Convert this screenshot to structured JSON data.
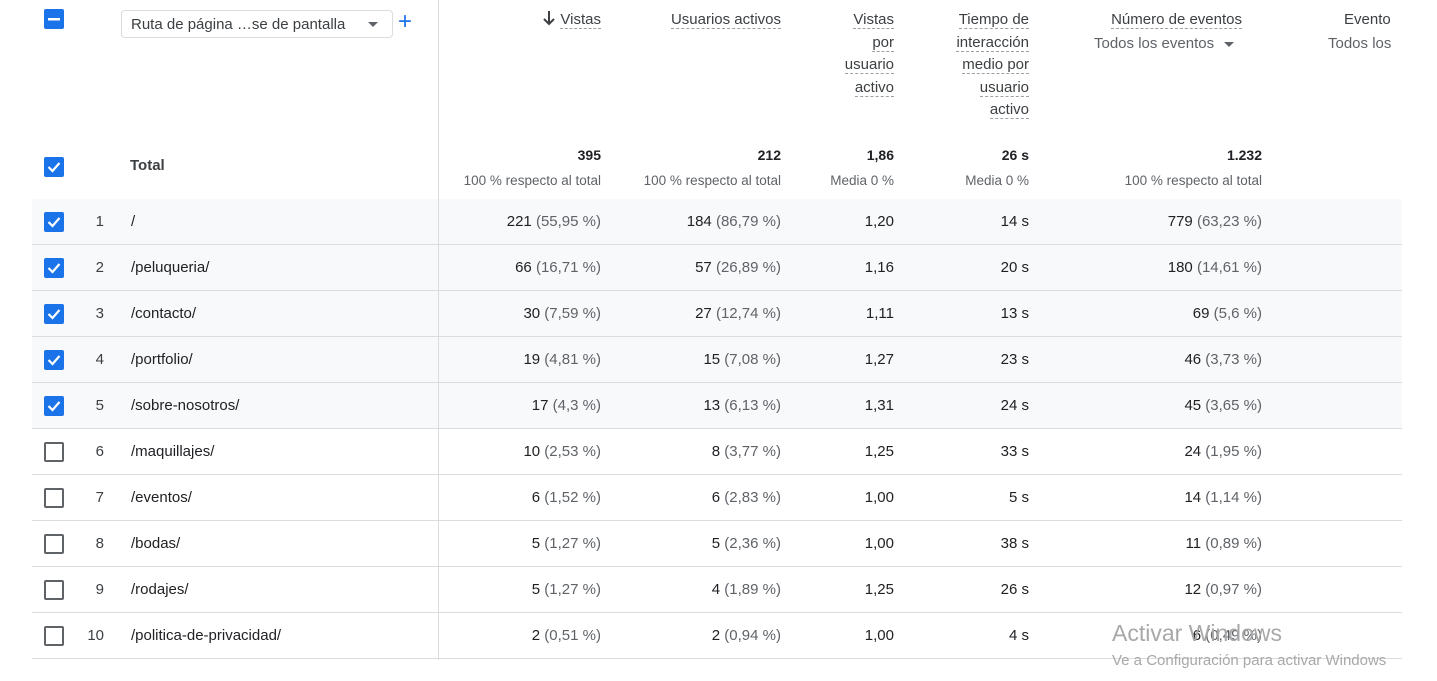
{
  "header": {
    "dimension_select": "Ruta de página …se de pantalla",
    "add_button": "+",
    "columns": {
      "views": "Vistas",
      "active_users": "Usuarios activos",
      "views_per_user": [
        "Vistas",
        "por",
        "usuario",
        "activo"
      ],
      "engagement_time": [
        "Tiempo de",
        "interacción",
        "medio por",
        "usuario",
        "activo"
      ],
      "event_count": "Número de eventos",
      "event_count_filter": "Todos los eventos",
      "events_partial": "Evento",
      "events_partial_filter": "Todos los"
    }
  },
  "total": {
    "label": "Total",
    "views": "395",
    "views_sub": "100 % respecto al total",
    "active_users": "212",
    "active_users_sub": "100 % respecto al total",
    "views_per_user": "1,86",
    "views_per_user_sub": "Media 0 %",
    "engagement_time": "26 s",
    "engagement_time_sub": "Media 0 %",
    "event_count": "1.232",
    "event_count_sub": "100 % respecto al total"
  },
  "rows": [
    {
      "idx": "1",
      "path": "/",
      "selected": true,
      "views": "221",
      "views_pct": "(55,95 %)",
      "users": "184",
      "users_pct": "(86,79 %)",
      "vpu": "1,20",
      "time": "14 s",
      "events": "779",
      "events_pct": "(63,23 %)"
    },
    {
      "idx": "2",
      "path": "/peluqueria/",
      "selected": true,
      "views": "66",
      "views_pct": "(16,71 %)",
      "users": "57",
      "users_pct": "(26,89 %)",
      "vpu": "1,16",
      "time": "20 s",
      "events": "180",
      "events_pct": "(14,61 %)"
    },
    {
      "idx": "3",
      "path": "/contacto/",
      "selected": true,
      "views": "30",
      "views_pct": "(7,59 %)",
      "users": "27",
      "users_pct": "(12,74 %)",
      "vpu": "1,11",
      "time": "13 s",
      "events": "69",
      "events_pct": "(5,6 %)"
    },
    {
      "idx": "4",
      "path": "/portfolio/",
      "selected": true,
      "views": "19",
      "views_pct": "(4,81 %)",
      "users": "15",
      "users_pct": "(7,08 %)",
      "vpu": "1,27",
      "time": "23 s",
      "events": "46",
      "events_pct": "(3,73 %)"
    },
    {
      "idx": "5",
      "path": "/sobre-nosotros/",
      "selected": true,
      "views": "17",
      "views_pct": "(4,3 %)",
      "users": "13",
      "users_pct": "(6,13 %)",
      "vpu": "1,31",
      "time": "24 s",
      "events": "45",
      "events_pct": "(3,65 %)"
    },
    {
      "idx": "6",
      "path": "/maquillajes/",
      "selected": false,
      "views": "10",
      "views_pct": "(2,53 %)",
      "users": "8",
      "users_pct": "(3,77 %)",
      "vpu": "1,25",
      "time": "33 s",
      "events": "24",
      "events_pct": "(1,95 %)"
    },
    {
      "idx": "7",
      "path": "/eventos/",
      "selected": false,
      "views": "6",
      "views_pct": "(1,52 %)",
      "users": "6",
      "users_pct": "(2,83 %)",
      "vpu": "1,00",
      "time": "5 s",
      "events": "14",
      "events_pct": "(1,14 %)"
    },
    {
      "idx": "8",
      "path": "/bodas/",
      "selected": false,
      "views": "5",
      "views_pct": "(1,27 %)",
      "users": "5",
      "users_pct": "(2,36 %)",
      "vpu": "1,00",
      "time": "38 s",
      "events": "11",
      "events_pct": "(0,89 %)"
    },
    {
      "idx": "9",
      "path": "/rodajes/",
      "selected": false,
      "views": "5",
      "views_pct": "(1,27 %)",
      "users": "4",
      "users_pct": "(1,89 %)",
      "vpu": "1,25",
      "time": "26 s",
      "events": "12",
      "events_pct": "(0,97 %)"
    },
    {
      "idx": "10",
      "path": "/politica-de-privacidad/",
      "selected": false,
      "views": "2",
      "views_pct": "(0,51 %)",
      "users": "2",
      "users_pct": "(0,94 %)",
      "vpu": "1,00",
      "time": "4 s",
      "events": "6",
      "events_pct": "(0,49 %)"
    }
  ],
  "watermark": {
    "line1": "Activar Windows",
    "line2": "Ve a Configuración para activar Windows"
  },
  "colors": {
    "accent": "#1a73e8",
    "row_selected": "#f8f9fa",
    "border": "#dadce0"
  }
}
